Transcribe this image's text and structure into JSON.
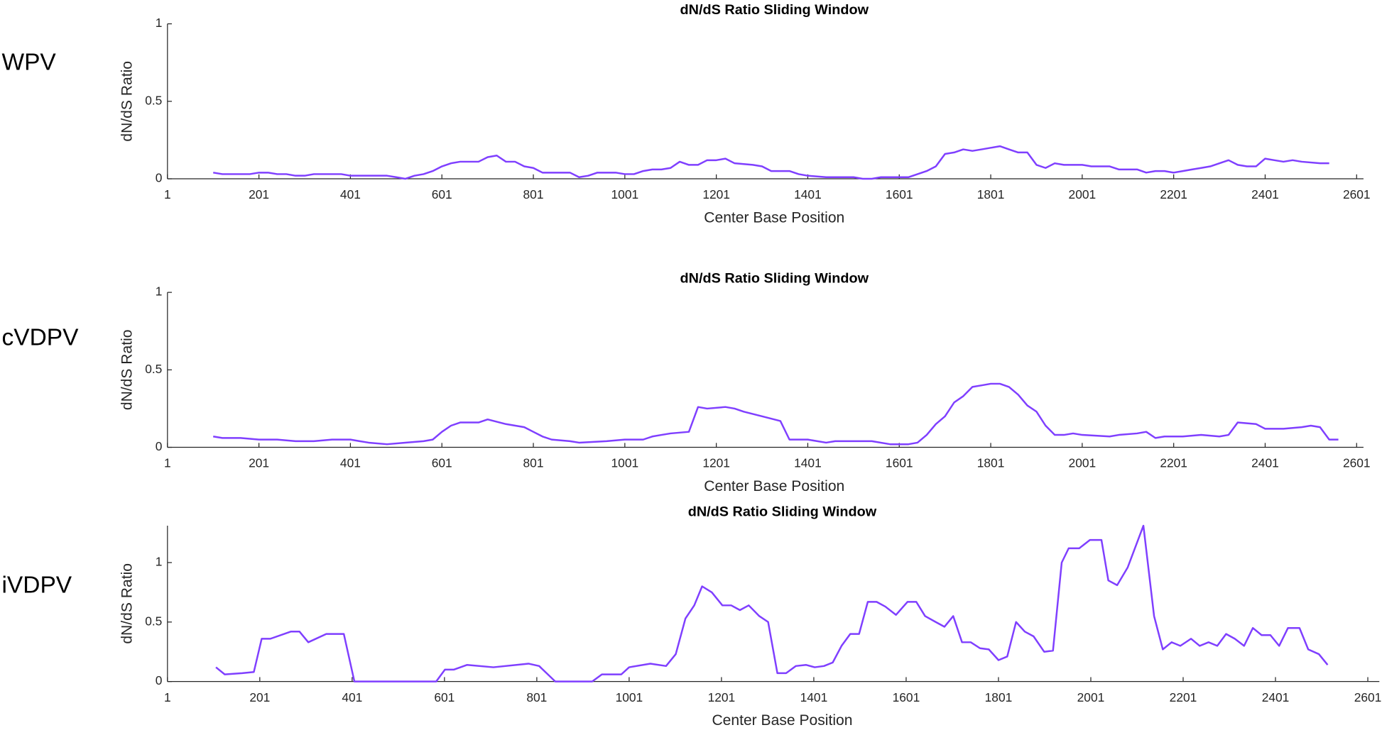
{
  "chart_data": [
    {
      "type": "line",
      "label": "WPV",
      "title": "dN/dS Ratio Sliding Window",
      "xlabel": "Center Base Position",
      "ylabel": "dN/dS Ratio",
      "xlim": [
        1,
        2616
      ],
      "ylim": [
        0,
        1
      ],
      "xticks": [
        1,
        201,
        401,
        601,
        801,
        1001,
        1201,
        1401,
        1601,
        1801,
        2001,
        2201,
        2401,
        2601
      ],
      "yticks": [
        0,
        0.5,
        1
      ],
      "x": [
        101,
        121,
        161,
        181,
        201,
        221,
        241,
        261,
        281,
        301,
        321,
        341,
        381,
        401,
        461,
        481,
        501,
        521,
        541,
        561,
        581,
        601,
        621,
        641,
        681,
        701,
        721,
        741,
        761,
        781,
        801,
        821,
        861,
        881,
        901,
        921,
        941,
        981,
        1001,
        1021,
        1041,
        1061,
        1081,
        1101,
        1121,
        1141,
        1161,
        1181,
        1201,
        1221,
        1241,
        1281,
        1301,
        1321,
        1361,
        1381,
        1401,
        1441,
        1501,
        1521,
        1541,
        1561,
        1601,
        1621,
        1661,
        1681,
        1701,
        1721,
        1741,
        1761,
        1781,
        1801,
        1821,
        1841,
        1861,
        1881,
        1901,
        1921,
        1941,
        1961,
        2001,
        2021,
        2061,
        2081,
        2121,
        2141,
        2161,
        2181,
        2201,
        2221,
        2241,
        2261,
        2281,
        2301,
        2321,
        2341,
        2361,
        2381,
        2401,
        2421,
        2441,
        2461,
        2481,
        2521,
        2541
      ],
      "series": [
        {
          "color": "#7f3fff",
          "values": [
            0.04,
            0.03,
            0.03,
            0.03,
            0.04,
            0.04,
            0.03,
            0.03,
            0.02,
            0.02,
            0.03,
            0.03,
            0.03,
            0.02,
            0.02,
            0.02,
            0.01,
            0.0,
            0.02,
            0.03,
            0.05,
            0.08,
            0.1,
            0.11,
            0.11,
            0.14,
            0.15,
            0.11,
            0.11,
            0.08,
            0.07,
            0.04,
            0.04,
            0.04,
            0.01,
            0.02,
            0.04,
            0.04,
            0.03,
            0.03,
            0.05,
            0.06,
            0.06,
            0.07,
            0.11,
            0.09,
            0.09,
            0.12,
            0.12,
            0.13,
            0.1,
            0.09,
            0.08,
            0.05,
            0.05,
            0.03,
            0.02,
            0.01,
            0.01,
            0.0,
            0.0,
            0.01,
            0.01,
            0.01,
            0.05,
            0.08,
            0.16,
            0.17,
            0.19,
            0.18,
            0.19,
            0.2,
            0.21,
            0.19,
            0.17,
            0.17,
            0.09,
            0.07,
            0.1,
            0.09,
            0.09,
            0.08,
            0.08,
            0.06,
            0.06,
            0.04,
            0.05,
            0.05,
            0.04,
            0.05,
            0.06,
            0.07,
            0.08,
            0.1,
            0.12,
            0.09,
            0.08,
            0.08,
            0.13,
            0.12,
            0.11,
            0.12,
            0.11,
            0.1,
            0.1
          ]
        }
      ]
    },
    {
      "type": "line",
      "label": "cVDPV",
      "title": "dN/dS Ratio Sliding Window",
      "xlabel": "Center Base Position",
      "ylabel": "dN/dS Ratio",
      "xlim": [
        1,
        2616
      ],
      "ylim": [
        0,
        1
      ],
      "xticks": [
        1,
        201,
        401,
        601,
        801,
        1001,
        1201,
        1401,
        1601,
        1801,
        2001,
        2201,
        2401,
        2601
      ],
      "yticks": [
        0,
        0.5,
        1
      ],
      "x": [
        101,
        121,
        161,
        201,
        241,
        281,
        321,
        361,
        401,
        421,
        441,
        481,
        521,
        561,
        581,
        601,
        621,
        641,
        681,
        701,
        741,
        781,
        801,
        821,
        841,
        881,
        901,
        961,
        1001,
        1041,
        1061,
        1081,
        1101,
        1141,
        1161,
        1181,
        1221,
        1241,
        1261,
        1301,
        1341,
        1361,
        1401,
        1441,
        1461,
        1501,
        1541,
        1581,
        1621,
        1641,
        1661,
        1681,
        1701,
        1721,
        1741,
        1761,
        1781,
        1801,
        1821,
        1841,
        1861,
        1881,
        1901,
        1921,
        1941,
        1961,
        1981,
        2001,
        2061,
        2081,
        2121,
        2141,
        2161,
        2181,
        2221,
        2261,
        2301,
        2321,
        2341,
        2381,
        2401,
        2441,
        2481,
        2501,
        2521,
        2541,
        2561
      ],
      "series": [
        {
          "color": "#7f3fff",
          "values": [
            0.07,
            0.06,
            0.06,
            0.05,
            0.05,
            0.04,
            0.04,
            0.05,
            0.05,
            0.04,
            0.03,
            0.02,
            0.03,
            0.04,
            0.05,
            0.1,
            0.14,
            0.16,
            0.16,
            0.18,
            0.15,
            0.13,
            0.1,
            0.07,
            0.05,
            0.04,
            0.03,
            0.04,
            0.05,
            0.05,
            0.07,
            0.08,
            0.09,
            0.1,
            0.26,
            0.25,
            0.26,
            0.25,
            0.23,
            0.2,
            0.17,
            0.05,
            0.05,
            0.03,
            0.04,
            0.04,
            0.04,
            0.02,
            0.02,
            0.03,
            0.08,
            0.15,
            0.2,
            0.29,
            0.33,
            0.39,
            0.4,
            0.41,
            0.41,
            0.39,
            0.34,
            0.27,
            0.23,
            0.14,
            0.08,
            0.08,
            0.09,
            0.08,
            0.07,
            0.08,
            0.09,
            0.1,
            0.06,
            0.07,
            0.07,
            0.08,
            0.07,
            0.08,
            0.16,
            0.15,
            0.12,
            0.12,
            0.13,
            0.14,
            0.13,
            0.05,
            0.05
          ]
        }
      ]
    },
    {
      "type": "line",
      "label": "iVDPV",
      "title": "dN/dS Ratio Sliding Window",
      "xlabel": "Center Base Position",
      "ylabel": "dN/dS Ratio",
      "xlim": [
        1,
        2626
      ],
      "ylim": [
        0,
        1.31
      ],
      "xticks": [
        1,
        201,
        401,
        601,
        801,
        1001,
        1201,
        1401,
        1601,
        1801,
        2001,
        2201,
        2401,
        2601
      ],
      "yticks": [
        0,
        0.5,
        1
      ],
      "x": [
        106,
        125,
        163,
        188,
        205,
        224,
        268,
        287,
        306,
        345,
        383,
        406,
        583,
        602,
        621,
        650,
        707,
        783,
        806,
        841,
        921,
        942,
        984,
        1001,
        1047,
        1081,
        1102,
        1123,
        1142,
        1159,
        1180,
        1203,
        1222,
        1241,
        1260,
        1283,
        1302,
        1322,
        1341,
        1362,
        1384,
        1403,
        1423,
        1442,
        1461,
        1480,
        1499,
        1518,
        1537,
        1556,
        1579,
        1604,
        1623,
        1642,
        1665,
        1684,
        1703,
        1722,
        1741,
        1761,
        1780,
        1801,
        1820,
        1839,
        1858,
        1877,
        1900,
        1919,
        1938,
        1953,
        1976,
        1999,
        2024,
        2039,
        2058,
        2081,
        2115,
        2138,
        2157,
        2176,
        2195,
        2218,
        2237,
        2256,
        2275,
        2294,
        2313,
        2333,
        2352,
        2371,
        2390,
        2409,
        2428,
        2453,
        2472,
        2495,
        2514
      ],
      "series": [
        {
          "color": "#7f3fff",
          "values": [
            0.12,
            0.06,
            0.07,
            0.08,
            0.36,
            0.36,
            0.42,
            0.42,
            0.33,
            0.4,
            0.4,
            0.0,
            0.0,
            0.1,
            0.1,
            0.14,
            0.12,
            0.15,
            0.13,
            0.0,
            0.0,
            0.06,
            0.06,
            0.12,
            0.15,
            0.13,
            0.23,
            0.53,
            0.64,
            0.8,
            0.75,
            0.64,
            0.64,
            0.6,
            0.64,
            0.55,
            0.5,
            0.07,
            0.07,
            0.13,
            0.14,
            0.12,
            0.13,
            0.16,
            0.3,
            0.4,
            0.4,
            0.67,
            0.67,
            0.63,
            0.56,
            0.67,
            0.67,
            0.55,
            0.5,
            0.46,
            0.55,
            0.33,
            0.33,
            0.28,
            0.27,
            0.18,
            0.21,
            0.5,
            0.42,
            0.38,
            0.25,
            0.26,
            1.0,
            1.12,
            1.12,
            1.19,
            1.19,
            0.85,
            0.81,
            0.96,
            1.31,
            0.55,
            0.27,
            0.33,
            0.3,
            0.36,
            0.3,
            0.33,
            0.3,
            0.4,
            0.36,
            0.3,
            0.45,
            0.39,
            0.39,
            0.3,
            0.45,
            0.45,
            0.27,
            0.23,
            0.14
          ]
        }
      ]
    }
  ]
}
